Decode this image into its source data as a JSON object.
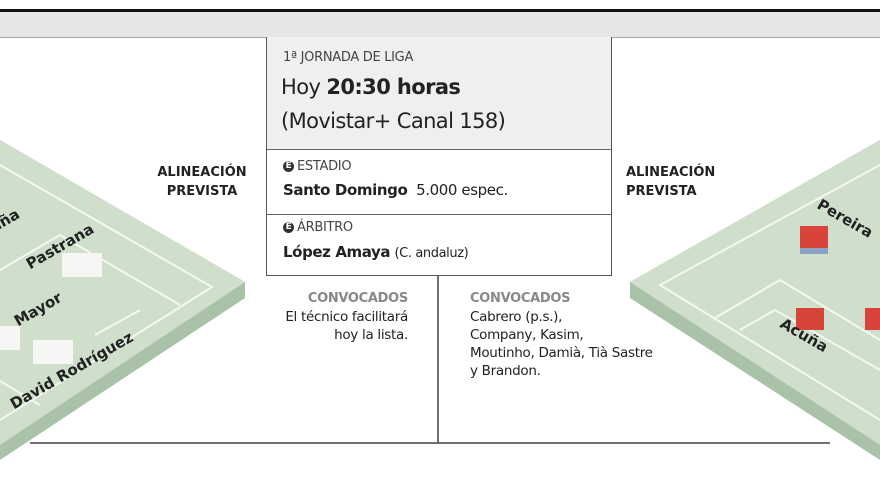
{
  "match": {
    "round": "1ª JORNADA DE LIGA",
    "time_prefix": "Hoy",
    "time": "20:30 horas",
    "broadcast": "(Movistar+ Canal 158)"
  },
  "stadium": {
    "label": "ESTADIO",
    "name": "Santo Domingo",
    "capacity": "5.000 espec."
  },
  "referee": {
    "label": "ÁRBITRO",
    "name": "López Amaya",
    "region": "(C. andaluz)"
  },
  "home": {
    "lineup_label_1": "ALINEACIÓN",
    "lineup_label_2": "PREVISTA",
    "players": [
      "aña",
      "Pastrana",
      "Mayor",
      "David Rodríguez"
    ],
    "squad_title": "CONVOCADOS",
    "squad": [
      "El técnico facilitará",
      "hoy la lista."
    ],
    "kit_color": "#f4f4f2"
  },
  "away": {
    "lineup_label_1": "ALINEACIÓN",
    "lineup_label_2": "PREVISTA",
    "players": [
      "Pereira",
      "Acuña"
    ],
    "squad_title": "CONVOCADOS",
    "squad": [
      "Cabrero (p.s.),",
      "Company, Kasim,",
      "Moutinho, Damià, Tià Sastre",
      "y Brandon."
    ],
    "kit_color": "#d9443a"
  },
  "icon_letter": "E",
  "pitch_color": "#c9dcc7"
}
